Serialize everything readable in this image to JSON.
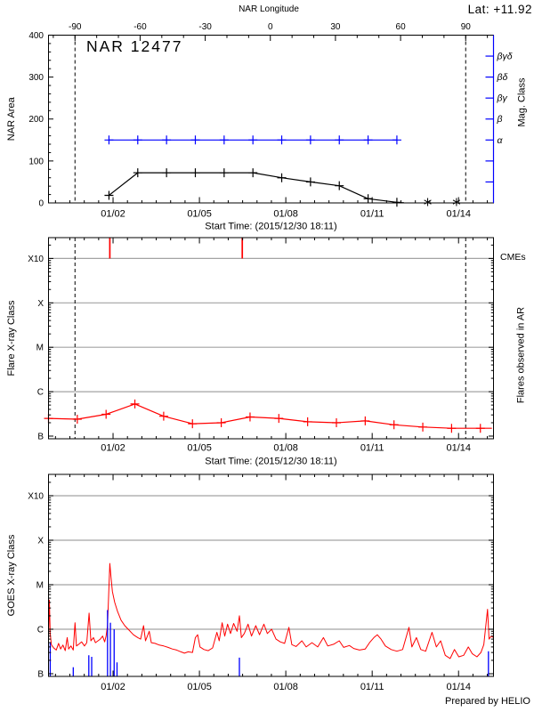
{
  "header": {
    "lat": "Lat: +11.92",
    "credit": "Prepared by HELIO"
  },
  "colors": {
    "accent_red": "#ff0000",
    "accent_blue": "#0000ff",
    "grid_gray": "#a3a3a3",
    "axis_black": "#000000"
  },
  "chart_data": [
    {
      "panel": "nar_area",
      "type": "line",
      "title": "NAR 12477",
      "top_axis": {
        "label": "NAR Longitude",
        "tick_values": [
          -90,
          -60,
          -30,
          0,
          30,
          60,
          90
        ],
        "tick_labels": [
          "-90",
          "-60",
          "-30",
          "0",
          "30",
          "60",
          "90"
        ],
        "minor_step_deg": 10,
        "lon_minus90_day": 0.92,
        "lon_plus90_day": 14.49
      },
      "x_axis": {
        "label": "Start Time: (2015/12/30 18:11)",
        "tick_labels": [
          "01/02",
          "01/05",
          "01/08",
          "01/11",
          "01/14"
        ],
        "tick_days": [
          2.242,
          5.242,
          8.242,
          11.242,
          14.242
        ],
        "minor_step_days": 0.5,
        "range_days": [
          0,
          15.45
        ]
      },
      "y_axis": {
        "label": "NAR Area",
        "tick_labels": [
          "0",
          "100",
          "200",
          "300",
          "400"
        ],
        "tick_values": [
          0,
          100,
          200,
          300,
          400
        ],
        "minor_step": 20,
        "range": [
          0,
          400
        ]
      },
      "right_axis": {
        "label": "Mag. Class",
        "tick_values": [
          50,
          100,
          150,
          200,
          250,
          300,
          350
        ],
        "labeled": [
          {
            "value": 350,
            "label": "βγδ"
          },
          {
            "value": 300,
            "label": "βδ"
          },
          {
            "value": 250,
            "label": "βγ"
          },
          {
            "value": 200,
            "label": "β"
          },
          {
            "value": 150,
            "label": "α"
          }
        ]
      },
      "limb_lines_days": [
        0.92,
        14.49
      ],
      "series": [
        {
          "name": "nar_area_curve",
          "color": "#000000",
          "marker": "plus",
          "points": [
            [
              2.1,
              18
            ],
            [
              3.1,
              72
            ],
            [
              4.1,
              72
            ],
            [
              5.1,
              72
            ],
            [
              6.1,
              72
            ],
            [
              7.1,
              72
            ],
            [
              8.1,
              60
            ],
            [
              9.1,
              50
            ],
            [
              10.1,
              41
            ],
            [
              11.1,
              10
            ],
            [
              12.1,
              1.5
            ]
          ],
          "tail": [
            [
              12.35,
              0.5
            ]
          ]
        },
        {
          "name": "mag_class_alpha_line",
          "color": "#0000ff",
          "marker": "plus",
          "points": [
            [
              2.1,
              150
            ],
            [
              3.1,
              150
            ],
            [
              4.1,
              150
            ],
            [
              5.1,
              150
            ],
            [
              6.1,
              150
            ],
            [
              7.1,
              150
            ],
            [
              8.1,
              150
            ],
            [
              9.1,
              150
            ],
            [
              10.1,
              150
            ],
            [
              11.1,
              150
            ],
            [
              12.1,
              150
            ]
          ]
        }
      ],
      "star_markers": {
        "marker": "asterisk",
        "points": [
          [
            13.17,
            2
          ],
          [
            14.17,
            2
          ]
        ]
      }
    },
    {
      "panel": "flare_xray",
      "type": "line",
      "y_units": "GOES class, log scale, levels in B-class multiples (B=1, C=10, M=100, X=1000)",
      "x_axis": {
        "label": "Start Time: (2015/12/30 18:11)",
        "tick_labels": [
          "01/02",
          "01/05",
          "01/08",
          "01/11",
          "01/14"
        ],
        "tick_days": [
          2.242,
          5.242,
          8.242,
          11.242,
          14.242
        ],
        "minor_step_days": 0.5,
        "range_days": [
          0,
          15.45
        ]
      },
      "y_axis": {
        "label": "Flare X-ray Class",
        "tick_labels": [
          "B",
          "C",
          "M",
          "X",
          "X10"
        ],
        "tick_values": [
          1,
          10,
          100,
          1000,
          10000
        ],
        "scale": "log"
      },
      "right_label": "Flares observed in AR",
      "cme_label": "CMEs",
      "cme_days": [
        2.13,
        6.73
      ],
      "gridline_values": [
        10,
        100,
        1000,
        10000
      ],
      "limb_lines_days": [
        0.92,
        14.49
      ],
      "series": [
        {
          "name": "flare_level_curve",
          "color": "#ff0000",
          "marker": "plus",
          "points": [
            [
              0,
              2.5
            ],
            [
              1,
              2.4
            ],
            [
              2,
              3.1
            ],
            [
              3,
              5.3
            ],
            [
              4,
              2.8
            ],
            [
              5,
              1.9
            ],
            [
              6,
              2.0
            ],
            [
              7,
              2.7
            ],
            [
              8,
              2.5
            ],
            [
              9,
              2.1
            ],
            [
              10,
              2.0
            ],
            [
              11,
              2.2
            ],
            [
              12,
              1.8
            ],
            [
              13,
              1.6
            ],
            [
              14,
              1.5
            ],
            [
              15,
              1.5
            ]
          ],
          "tail": [
            [
              15.4,
              1.5
            ]
          ]
        }
      ]
    },
    {
      "panel": "goes_xray",
      "type": "line",
      "y_units": "GOES class, log scale, levels in B-class multiples (B=1, C=10, M=100, X=1000)",
      "x_axis": {
        "label": "",
        "tick_labels": [
          "01/02",
          "01/05",
          "01/08",
          "01/11",
          "01/14"
        ],
        "tick_days": [
          2.242,
          5.242,
          8.242,
          11.242,
          14.242
        ],
        "minor_step_days": 0.5,
        "range_days": [
          0,
          15.45
        ]
      },
      "y_axis": {
        "label": "GOES X-ray Class",
        "tick_labels": [
          "B",
          "C",
          "M",
          "X",
          "X10"
        ],
        "tick_values": [
          1,
          10,
          100,
          1000,
          10000
        ],
        "scale": "log"
      },
      "gridline_values": [
        10,
        100,
        1000,
        10000
      ],
      "series": [
        {
          "name": "goes_flux_curve",
          "color": "#ff0000",
          "points": [
            [
              0.0,
              6
            ],
            [
              0.03,
              45
            ],
            [
              0.06,
              8
            ],
            [
              0.1,
              4.5
            ],
            [
              0.18,
              3.8
            ],
            [
              0.27,
              3.4
            ],
            [
              0.35,
              4.8
            ],
            [
              0.42,
              3.6
            ],
            [
              0.5,
              4.4
            ],
            [
              0.58,
              3.3
            ],
            [
              0.65,
              6.5
            ],
            [
              0.7,
              3.6
            ],
            [
              0.78,
              4.2
            ],
            [
              0.86,
              3.4
            ],
            [
              0.92,
              14
            ],
            [
              0.97,
              4.2
            ],
            [
              1.05,
              4.6
            ],
            [
              1.15,
              5.2
            ],
            [
              1.25,
              4.2
            ],
            [
              1.33,
              5
            ],
            [
              1.41,
              23
            ],
            [
              1.47,
              5.5
            ],
            [
              1.56,
              6.5
            ],
            [
              1.63,
              5
            ],
            [
              1.72,
              5.5
            ],
            [
              1.8,
              6
            ],
            [
              1.88,
              7
            ],
            [
              1.95,
              5.2
            ],
            [
              2.0,
              7
            ],
            [
              2.05,
              12
            ],
            [
              2.09,
              60
            ],
            [
              2.13,
              300
            ],
            [
              2.17,
              150
            ],
            [
              2.22,
              70
            ],
            [
              2.3,
              40
            ],
            [
              2.4,
              25
            ],
            [
              2.52,
              16
            ],
            [
              2.65,
              12
            ],
            [
              2.8,
              9.5
            ],
            [
              2.95,
              7.5
            ],
            [
              3.1,
              6.5
            ],
            [
              3.2,
              6
            ],
            [
              3.3,
              12
            ],
            [
              3.37,
              5.5
            ],
            [
              3.5,
              9
            ],
            [
              3.57,
              5
            ],
            [
              3.7,
              4.8
            ],
            [
              3.85,
              4.4
            ],
            [
              4.0,
              4.2
            ],
            [
              4.15,
              3.9
            ],
            [
              4.3,
              3.6
            ],
            [
              4.45,
              3.4
            ],
            [
              4.6,
              3.1
            ],
            [
              4.72,
              2.9
            ],
            [
              4.85,
              3.1
            ],
            [
              5.0,
              3.0
            ],
            [
              5.1,
              6.5
            ],
            [
              5.18,
              7.5
            ],
            [
              5.26,
              4
            ],
            [
              5.4,
              3.5
            ],
            [
              5.55,
              3.3
            ],
            [
              5.7,
              3.8
            ],
            [
              5.85,
              8.5
            ],
            [
              5.93,
              5.5
            ],
            [
              6.03,
              14
            ],
            [
              6.12,
              7
            ],
            [
              6.22,
              13
            ],
            [
              6.32,
              8
            ],
            [
              6.43,
              13.5
            ],
            [
              6.55,
              9
            ],
            [
              6.63,
              20
            ],
            [
              6.7,
              6.5
            ],
            [
              6.8,
              8
            ],
            [
              6.93,
              13
            ],
            [
              7.05,
              7
            ],
            [
              7.2,
              12
            ],
            [
              7.33,
              7.5
            ],
            [
              7.48,
              13
            ],
            [
              7.6,
              8
            ],
            [
              7.75,
              10
            ],
            [
              7.9,
              6
            ],
            [
              8.05,
              5.2
            ],
            [
              8.2,
              4.8
            ],
            [
              8.35,
              11
            ],
            [
              8.45,
              4.5
            ],
            [
              8.6,
              4.1
            ],
            [
              8.8,
              5.5
            ],
            [
              8.95,
              4
            ],
            [
              9.15,
              5
            ],
            [
              9.35,
              4
            ],
            [
              9.55,
              6.5
            ],
            [
              9.7,
              4.2
            ],
            [
              9.9,
              4.6
            ],
            [
              10.1,
              5.5
            ],
            [
              10.25,
              3.9
            ],
            [
              10.45,
              4.3
            ],
            [
              10.6,
              3.7
            ],
            [
              10.8,
              3.4
            ],
            [
              11.0,
              3.6
            ],
            [
              11.15,
              5
            ],
            [
              11.3,
              6.5
            ],
            [
              11.42,
              7.5
            ],
            [
              11.55,
              6
            ],
            [
              11.7,
              4.2
            ],
            [
              11.9,
              3.5
            ],
            [
              12.1,
              3.2
            ],
            [
              12.3,
              3.5
            ],
            [
              12.52,
              11
            ],
            [
              12.62,
              4
            ],
            [
              12.78,
              6.5
            ],
            [
              12.93,
              3.5
            ],
            [
              13.1,
              3.2
            ],
            [
              13.32,
              8.5
            ],
            [
              13.47,
              4
            ],
            [
              13.62,
              5.5
            ],
            [
              13.78,
              2.6
            ],
            [
              13.95,
              2.2
            ],
            [
              14.1,
              3.5
            ],
            [
              14.25,
              2.4
            ],
            [
              14.42,
              2.6
            ],
            [
              14.58,
              4
            ],
            [
              14.72,
              2.8
            ],
            [
              14.88,
              2.4
            ],
            [
              15.02,
              3
            ],
            [
              15.12,
              4.5
            ],
            [
              15.25,
              28
            ],
            [
              15.3,
              6
            ],
            [
              15.38,
              7
            ],
            [
              15.45,
              6.5
            ]
          ]
        }
      ],
      "impulses": {
        "name": "event_markers",
        "color": "#0000ff",
        "points": [
          [
            0.06,
            5
          ],
          [
            0.86,
            1.4
          ],
          [
            1.4,
            2.6
          ],
          [
            1.5,
            2.4
          ],
          [
            2.05,
            27
          ],
          [
            2.15,
            14
          ],
          [
            2.28,
            10
          ],
          [
            2.38,
            1.8
          ],
          [
            6.63,
            2.3
          ],
          [
            15.28,
            3.2
          ]
        ]
      }
    }
  ]
}
